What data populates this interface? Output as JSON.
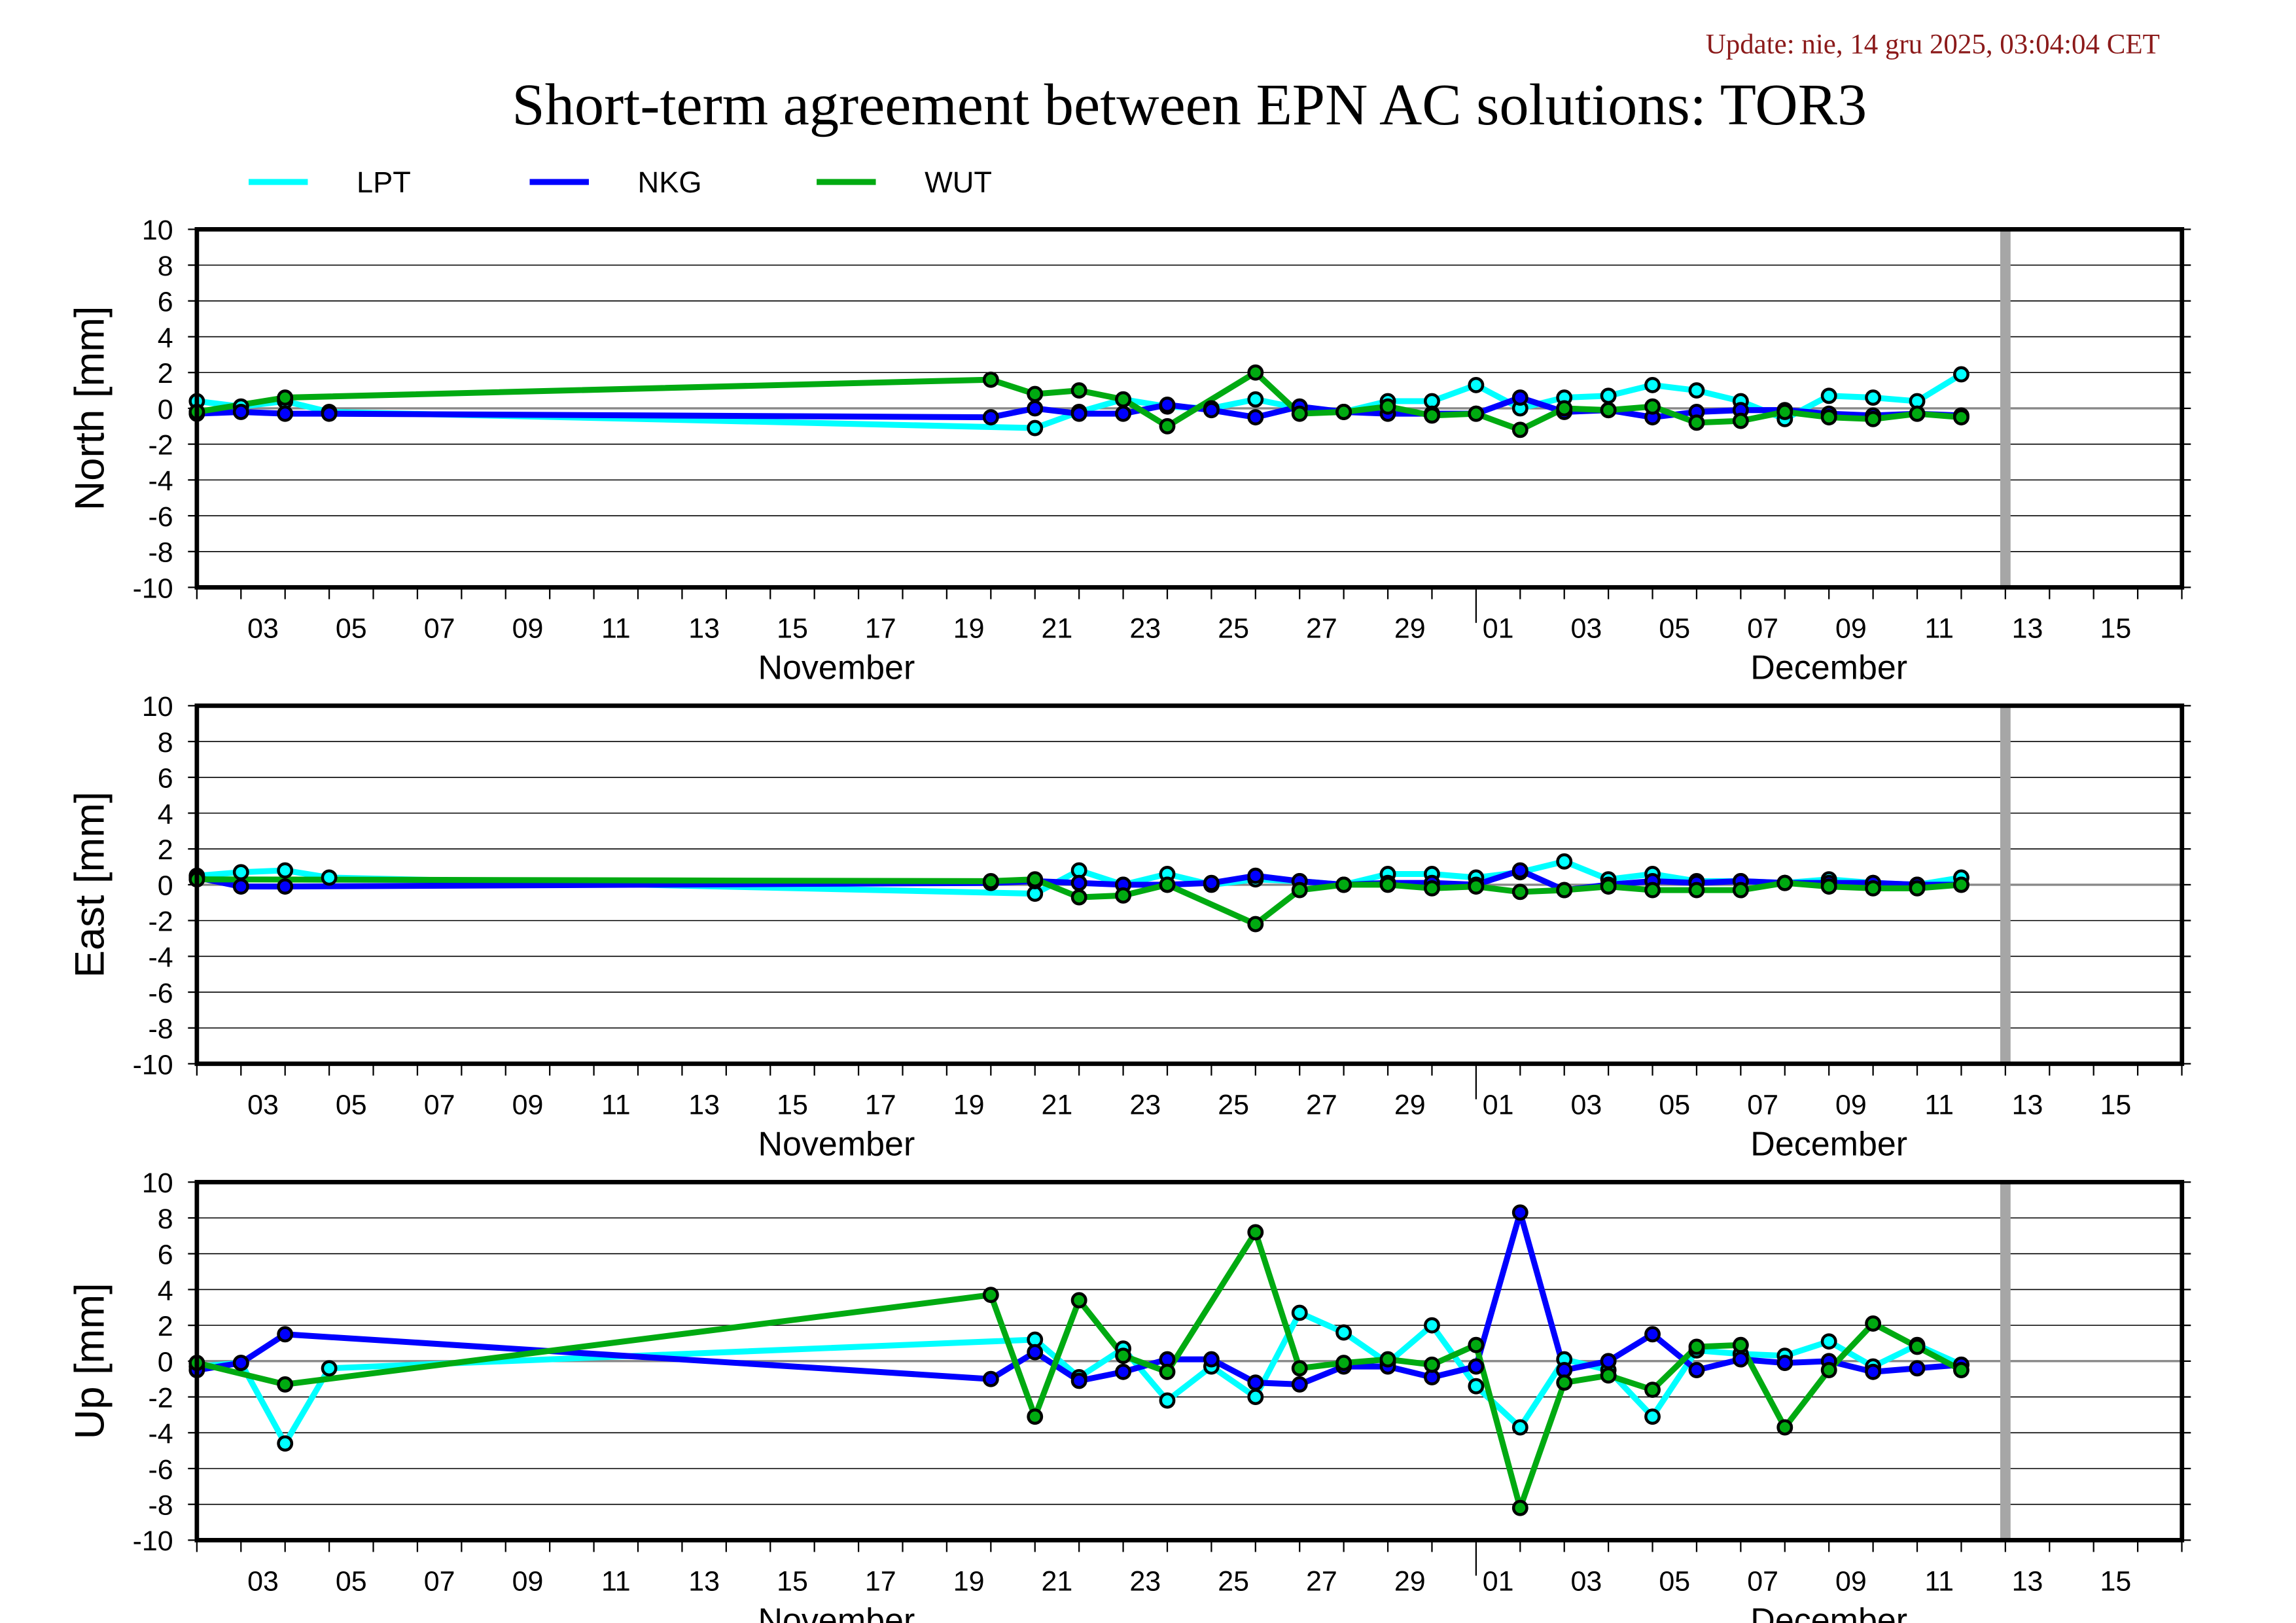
{
  "header": {
    "update": "Update: nie, 14 gru 2025, 03:04:04 CET",
    "title": "Short-term agreement between EPN AC solutions: TOR3"
  },
  "legend": [
    {
      "name": "LPT",
      "color": "#00ffff"
    },
    {
      "name": "NKG",
      "color": "#0000ff"
    },
    {
      "name": "WUT",
      "color": "#00aa11"
    }
  ],
  "chart_data": [
    {
      "type": "line",
      "ylabel": "North [mm]",
      "ylim": [
        -10,
        10
      ],
      "x_unit": "day index (1 = Nov 1, 31 = Dec 1)",
      "xlim": [
        2,
        47
      ],
      "grid": true,
      "legend": "top",
      "series": [
        {
          "name": "LPT",
          "x": [
            2,
            3,
            4,
            5,
            21,
            22,
            23,
            24,
            25,
            26,
            27,
            28,
            29,
            30,
            31,
            32,
            33,
            34,
            35,
            36,
            37,
            38,
            39,
            40,
            41,
            42
          ],
          "values": [
            0.4,
            0.1,
            0.4,
            -0.2,
            -1.1,
            -0.2,
            0.5,
            0.1,
            0,
            0.5,
            0,
            -0.2,
            0.4,
            0.4,
            1.3,
            0,
            0.6,
            0.7,
            1.3,
            1.0,
            0.4,
            -0.6,
            0.7,
            0.6,
            0.4,
            1.9
          ]
        },
        {
          "name": "NKG",
          "x": [
            2,
            3,
            4,
            5,
            20,
            21,
            22,
            23,
            24,
            25,
            26,
            27,
            28,
            29,
            30,
            31,
            32,
            33,
            34,
            35,
            36,
            37,
            38,
            39,
            40,
            41,
            42
          ],
          "values": [
            -0.3,
            -0.2,
            -0.3,
            -0.3,
            -0.5,
            0,
            -0.3,
            -0.3,
            0.2,
            -0.1,
            -0.5,
            0.1,
            -0.2,
            -0.3,
            -0.3,
            -0.3,
            0.6,
            -0.2,
            -0.1,
            -0.5,
            -0.2,
            -0.1,
            -0.1,
            -0.3,
            -0.4,
            -0.3,
            -0.4
          ]
        },
        {
          "name": "WUT",
          "x": [
            2,
            4,
            20,
            21,
            22,
            23,
            24,
            26,
            27,
            28,
            29,
            30,
            31,
            32,
            33,
            34,
            35,
            36,
            37,
            38,
            39,
            40,
            41,
            42
          ],
          "values": [
            -0.2,
            0.6,
            1.6,
            0.8,
            1.0,
            0.5,
            -1.0,
            2.0,
            -0.3,
            -0.2,
            0.1,
            -0.4,
            -0.3,
            -1.2,
            0,
            -0.1,
            0.1,
            -0.8,
            -0.7,
            -0.2,
            -0.5,
            -0.6,
            -0.3,
            -0.5
          ]
        }
      ]
    },
    {
      "type": "line",
      "ylabel": "East [mm]",
      "ylim": [
        -10,
        10
      ],
      "xlim": [
        2,
        47
      ],
      "grid": true,
      "series": [
        {
          "name": "LPT",
          "x": [
            2,
            3,
            4,
            5,
            21,
            22,
            23,
            24,
            25,
            26,
            27,
            28,
            29,
            30,
            31,
            32,
            33,
            34,
            35,
            36,
            37,
            38,
            39,
            40,
            41,
            42
          ],
          "values": [
            0.5,
            0.7,
            0.8,
            0.4,
            -0.5,
            0.8,
            0,
            0.6,
            0,
            0.3,
            0.2,
            0,
            0.6,
            0.6,
            0.4,
            0.7,
            1.3,
            0.3,
            0.6,
            0.2,
            0.2,
            0.1,
            0.3,
            0.1,
            0,
            0.4
          ]
        },
        {
          "name": "NKG",
          "x": [
            2,
            3,
            4,
            20,
            21,
            22,
            23,
            24,
            25,
            26,
            27,
            28,
            29,
            30,
            31,
            32,
            33,
            34,
            35,
            36,
            37,
            38,
            39,
            40,
            41,
            42
          ],
          "values": [
            0.4,
            -0.1,
            -0.1,
            0.1,
            0.2,
            0.1,
            0,
            0,
            0.1,
            0.5,
            0.2,
            0,
            0.1,
            0.1,
            0,
            0.8,
            -0.3,
            0,
            0.2,
            0.1,
            0.2,
            0.1,
            0.1,
            0.1,
            0,
            0
          ]
        },
        {
          "name": "WUT",
          "x": [
            2,
            20,
            21,
            22,
            23,
            24,
            26,
            27,
            28,
            29,
            30,
            31,
            32,
            33,
            34,
            35,
            36,
            37,
            38,
            39,
            40,
            41,
            42
          ],
          "values": [
            0.3,
            0.2,
            0.3,
            -0.7,
            -0.6,
            0,
            -2.2,
            -0.3,
            0,
            0,
            -0.2,
            -0.1,
            -0.4,
            -0.3,
            -0.1,
            -0.3,
            -0.3,
            -0.3,
            0.1,
            -0.1,
            -0.2,
            -0.2,
            0
          ]
        }
      ]
    },
    {
      "type": "line",
      "ylabel": "Up [mm]",
      "ylim": [
        -10,
        10
      ],
      "xlim": [
        2,
        47
      ],
      "grid": true,
      "series": [
        {
          "name": "LPT",
          "x": [
            2,
            3,
            4,
            5,
            21,
            22,
            23,
            24,
            25,
            26,
            27,
            28,
            29,
            30,
            31,
            32,
            33,
            34,
            35,
            36,
            37,
            38,
            39,
            40,
            41,
            42
          ],
          "values": [
            -0.3,
            -0.1,
            -4.6,
            -0.4,
            1.2,
            -0.9,
            0.7,
            -2.2,
            -0.3,
            -2.0,
            2.7,
            1.6,
            -0.1,
            2.0,
            -1.4,
            -3.7,
            0.1,
            -0.5,
            -3.1,
            0.6,
            0.4,
            0.3,
            1.1,
            -0.3,
            0.9,
            -0.2
          ]
        },
        {
          "name": "NKG",
          "x": [
            2,
            3,
            4,
            20,
            21,
            22,
            23,
            24,
            25,
            26,
            27,
            28,
            29,
            30,
            31,
            32,
            33,
            34,
            35,
            36,
            37,
            38,
            39,
            40,
            41,
            42
          ],
          "values": [
            -0.5,
            -0.1,
            1.5,
            -1.0,
            0.5,
            -1.1,
            -0.6,
            0.1,
            0.1,
            -1.2,
            -1.3,
            -0.3,
            -0.3,
            -0.9,
            -0.3,
            8.3,
            -0.5,
            0,
            1.5,
            -0.5,
            0.1,
            -0.1,
            0,
            -0.6,
            -0.4,
            -0.2
          ]
        },
        {
          "name": "WUT",
          "x": [
            2,
            4,
            20,
            21,
            22,
            23,
            24,
            26,
            27,
            28,
            29,
            30,
            31,
            32,
            33,
            34,
            35,
            36,
            37,
            38,
            39,
            40,
            41,
            42
          ],
          "values": [
            -0.1,
            -1.3,
            3.7,
            -3.1,
            3.4,
            0.3,
            -0.6,
            7.2,
            -0.4,
            -0.1,
            0.1,
            -0.2,
            0.9,
            -8.2,
            -1.2,
            -0.8,
            -1.6,
            0.8,
            0.9,
            -3.7,
            -0.5,
            2.1,
            0.8,
            -0.5
          ]
        }
      ]
    }
  ],
  "axis": {
    "yticks": [
      "10",
      "8",
      "6",
      "4",
      "2",
      "0",
      "-2",
      "-4",
      "-6",
      "-8",
      "-10"
    ],
    "xtick_labels": [
      "03",
      "05",
      "07",
      "09",
      "11",
      "13",
      "15",
      "17",
      "19",
      "21",
      "23",
      "25",
      "27",
      "29",
      "01",
      "03",
      "05",
      "07",
      "09",
      "11",
      "13",
      "15"
    ],
    "months": [
      "November",
      "December"
    ],
    "marker_day": 43
  }
}
